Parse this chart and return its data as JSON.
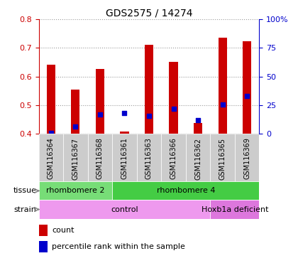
{
  "title": "GDS2575 / 14274",
  "samples": [
    "GSM116364",
    "GSM116367",
    "GSM116368",
    "GSM116361",
    "GSM116363",
    "GSM116366",
    "GSM116362",
    "GSM116365",
    "GSM116369"
  ],
  "count_values": [
    0.64,
    0.555,
    0.625,
    0.407,
    0.71,
    0.65,
    0.437,
    0.735,
    0.722
  ],
  "percentile_values": [
    0.404,
    0.425,
    0.468,
    0.473,
    0.462,
    0.487,
    0.447,
    0.502,
    0.533
  ],
  "bar_bottom": 0.4,
  "ylim": [
    0.4,
    0.8
  ],
  "y_ticks_left": [
    0.4,
    0.5,
    0.6,
    0.7,
    0.8
  ],
  "y_ticks_right": [
    0,
    25,
    50,
    75,
    100
  ],
  "bar_color": "#cc0000",
  "dot_color": "#0000cc",
  "tissue_groups": [
    {
      "label": "rhombomere 2",
      "start": 0,
      "end": 3,
      "color": "#77dd77"
    },
    {
      "label": "rhombomere 4",
      "start": 3,
      "end": 9,
      "color": "#44cc44"
    }
  ],
  "strain_groups": [
    {
      "label": "control",
      "start": 0,
      "end": 7,
      "color": "#ee99ee"
    },
    {
      "label": "Hoxb1a deficient",
      "start": 7,
      "end": 9,
      "color": "#dd77dd"
    }
  ],
  "legend_count_label": "count",
  "legend_pct_label": "percentile rank within the sample",
  "bg_color": "#bbbbbb",
  "plot_bg": "#ffffff",
  "dotted_color": "#999999",
  "left_spine_color": "#cc0000",
  "right_spine_color": "#0000cc"
}
